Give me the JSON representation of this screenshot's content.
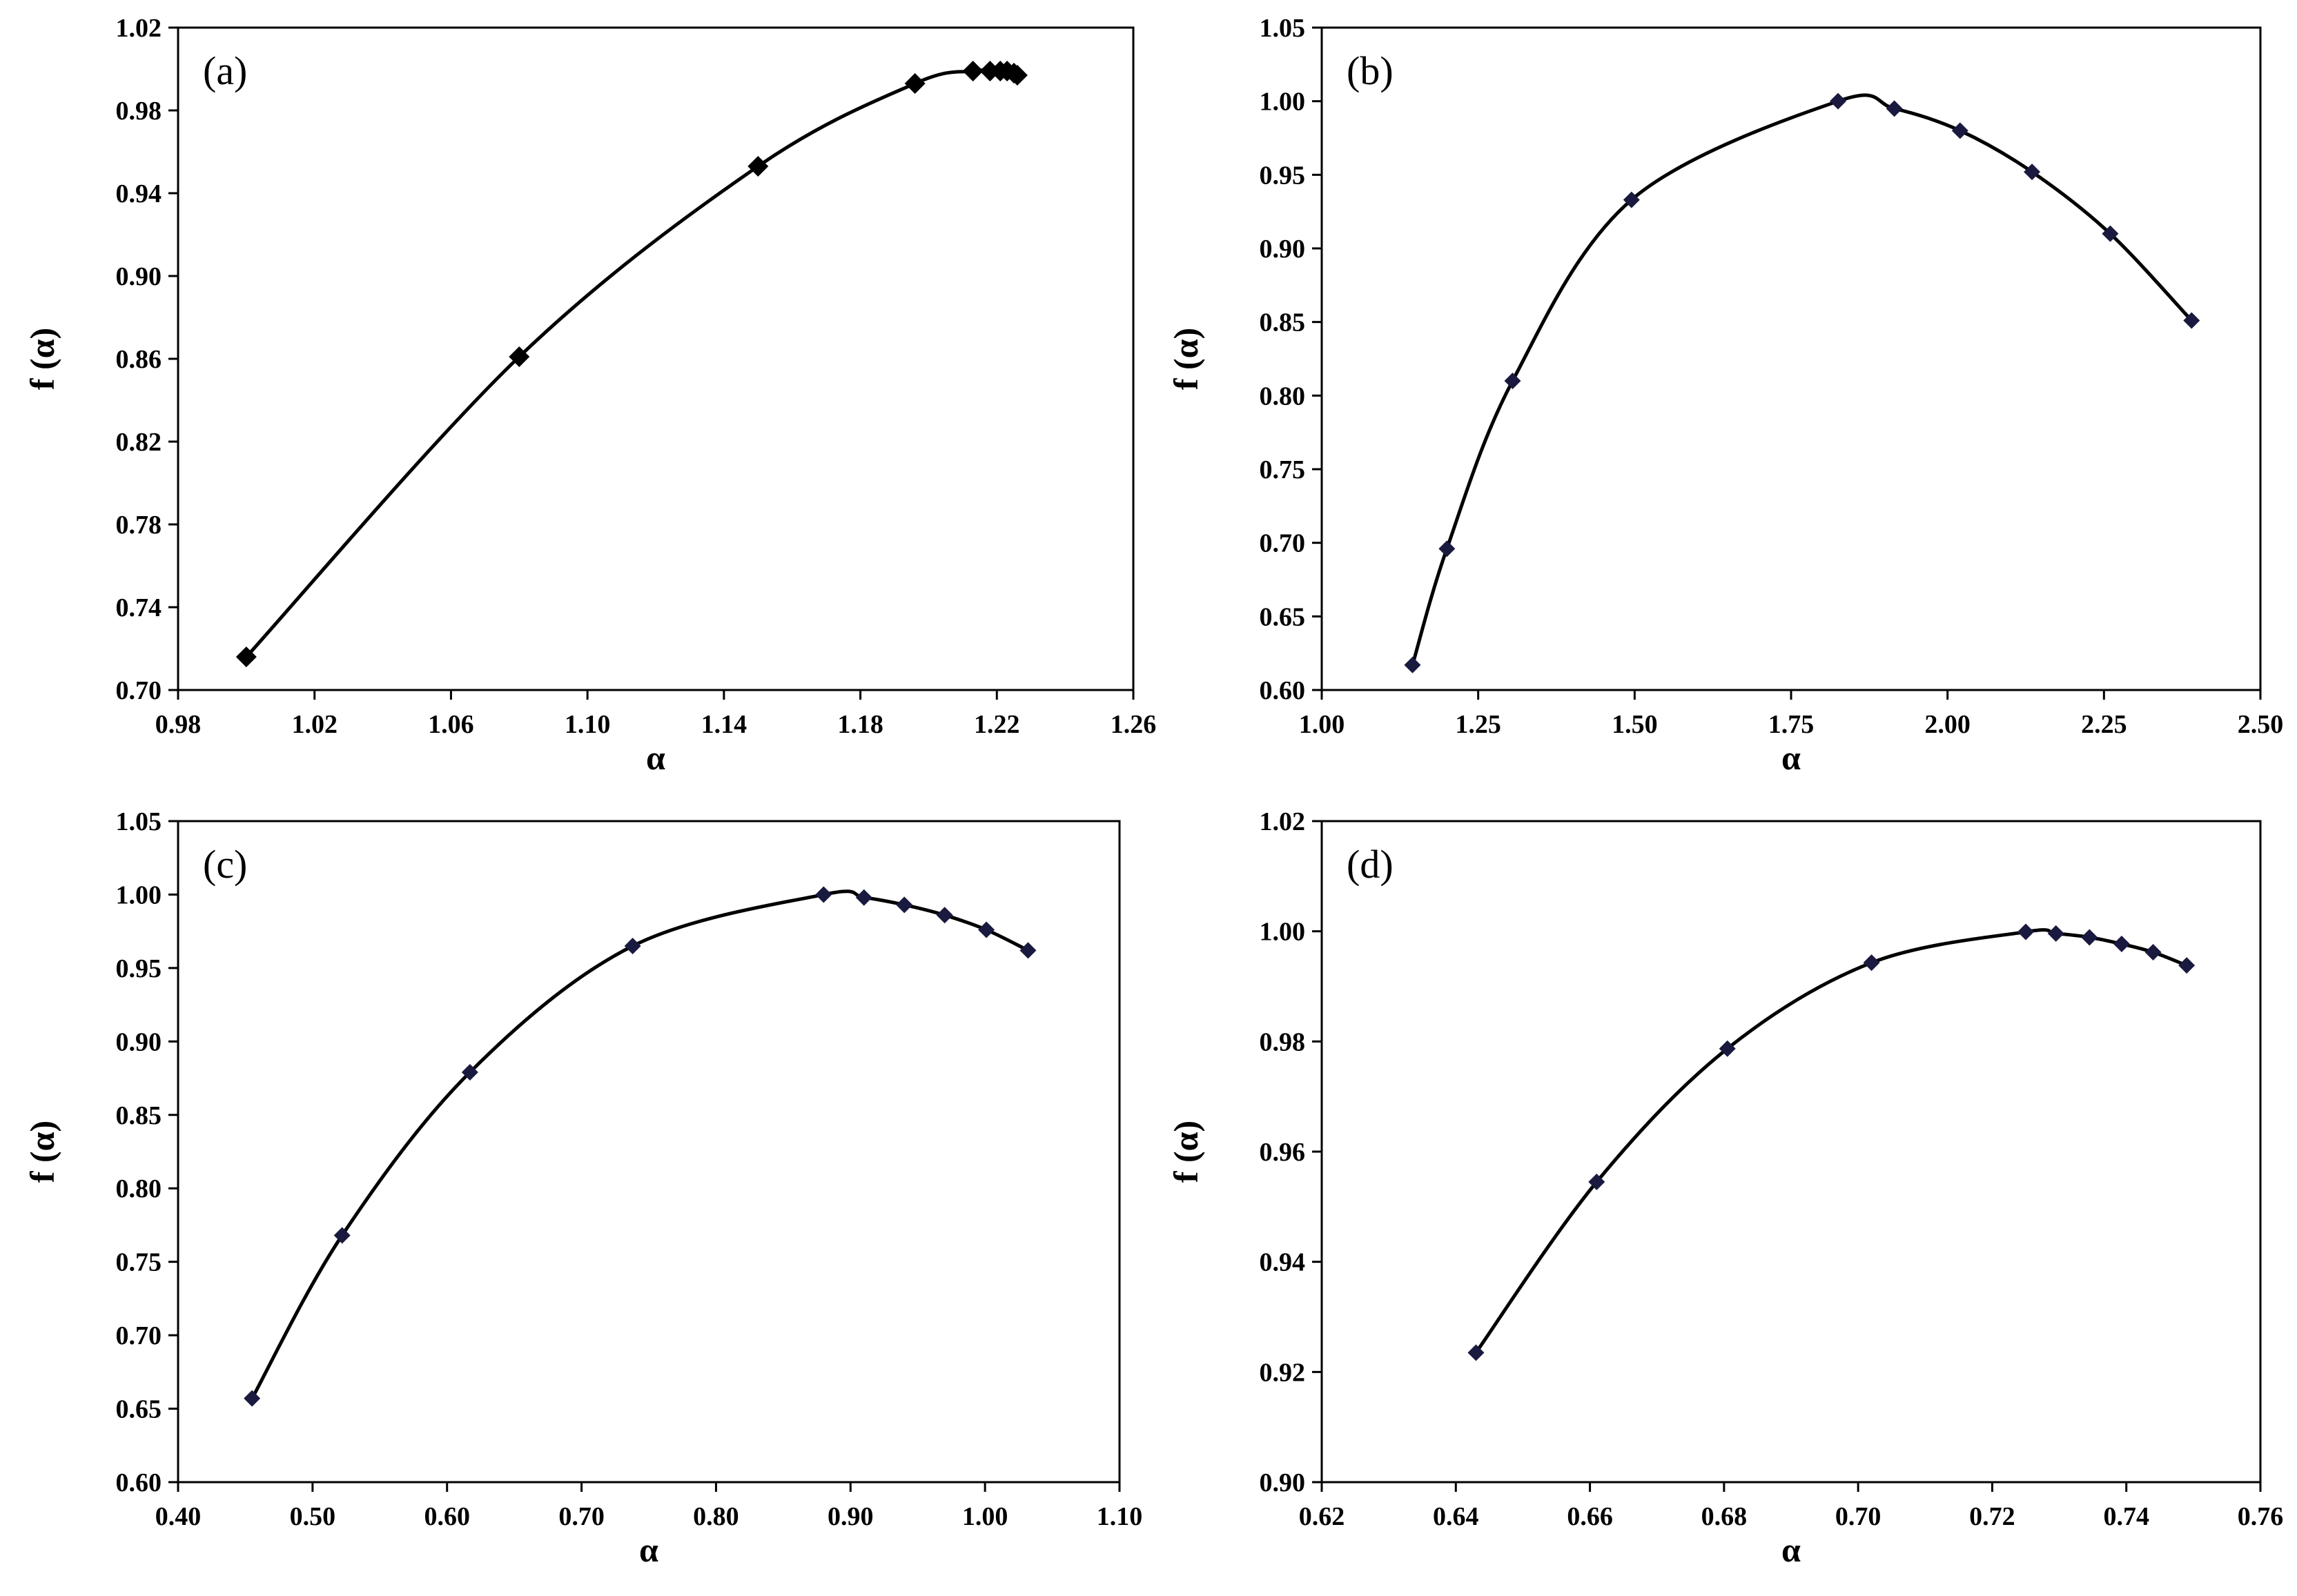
{
  "chart_data": [
    {
      "type": "line",
      "panel_label": "(a)",
      "xlabel": "α",
      "ylabel": "f (α)",
      "xlim": [
        0.98,
        1.26
      ],
      "ylim": [
        0.7,
        1.02
      ],
      "xticks": [
        "0.98",
        "1.02",
        "1.06",
        "1.10",
        "1.14",
        "1.18",
        "1.22",
        "1.26"
      ],
      "yticks": [
        "0.70",
        "0.74",
        "0.78",
        "0.82",
        "0.86",
        "0.90",
        "0.94",
        "0.98",
        "1.02"
      ],
      "marker": "diamond",
      "marker_color": "#000000",
      "x": [
        1.0,
        1.08,
        1.15,
        1.196,
        1.213,
        1.218,
        1.221,
        1.223,
        1.225,
        1.226
      ],
      "y": [
        0.716,
        0.861,
        0.953,
        0.993,
        0.999,
        0.999,
        0.999,
        0.999,
        0.998,
        0.997
      ]
    },
    {
      "type": "line",
      "panel_label": "(b)",
      "xlabel": "α",
      "ylabel": "f (α)",
      "xlim": [
        1.0,
        2.5
      ],
      "ylim": [
        0.6,
        1.05
      ],
      "xticks": [
        "1.00",
        "1.25",
        "1.50",
        "1.75",
        "2.00",
        "2.25",
        "2.50"
      ],
      "yticks": [
        "0.60",
        "0.65",
        "0.70",
        "0.75",
        "0.80",
        "0.85",
        "0.90",
        "0.95",
        "1.00",
        "1.05"
      ],
      "marker": "diamond",
      "marker_color": "#1a1a40",
      "x": [
        1.145,
        1.2,
        1.305,
        1.495,
        1.825,
        1.915,
        2.02,
        2.135,
        2.26,
        2.39
      ],
      "y": [
        0.617,
        0.696,
        0.81,
        0.933,
        1.0,
        0.995,
        0.98,
        0.952,
        0.91,
        0.851
      ]
    },
    {
      "type": "line",
      "panel_label": "(c)",
      "xlabel": "α",
      "ylabel": "f (α)",
      "xlim": [
        0.4,
        1.1
      ],
      "ylim": [
        0.6,
        1.05
      ],
      "xticks": [
        "0.40",
        "0.50",
        "0.60",
        "0.70",
        "0.80",
        "0.90",
        "1.00",
        "1.10"
      ],
      "yticks": [
        "0.60",
        "0.65",
        "0.70",
        "0.75",
        "0.80",
        "0.85",
        "0.90",
        "0.95",
        "1.00",
        "1.05"
      ],
      "marker": "diamond",
      "marker_color": "#1a1a40",
      "x": [
        0.455,
        0.522,
        0.617,
        0.738,
        0.88,
        0.91,
        0.94,
        0.97,
        1.001,
        1.032
      ],
      "y": [
        0.657,
        0.768,
        0.879,
        0.965,
        1.0,
        0.998,
        0.993,
        0.986,
        0.976,
        0.962
      ]
    },
    {
      "type": "line",
      "panel_label": "(d)",
      "xlabel": "α",
      "ylabel": "f (α)",
      "xlim": [
        0.62,
        0.76
      ],
      "ylim": [
        0.9,
        1.02
      ],
      "xticks": [
        "0.62",
        "0.64",
        "0.66",
        "0.68",
        "0.70",
        "0.72",
        "0.74",
        "0.76"
      ],
      "yticks": [
        "0.90",
        "0.92",
        "0.94",
        "0.96",
        "0.98",
        "1.00",
        "1.02"
      ],
      "marker": "diamond",
      "marker_color": "#1a1a40",
      "x": [
        0.643,
        0.661,
        0.6805,
        0.702,
        0.725,
        0.7295,
        0.7345,
        0.7393,
        0.744,
        0.749
      ],
      "y": [
        0.9235,
        0.9545,
        0.9787,
        0.9943,
        0.9999,
        0.9996,
        0.9989,
        0.9977,
        0.9962,
        0.9938
      ]
    }
  ]
}
